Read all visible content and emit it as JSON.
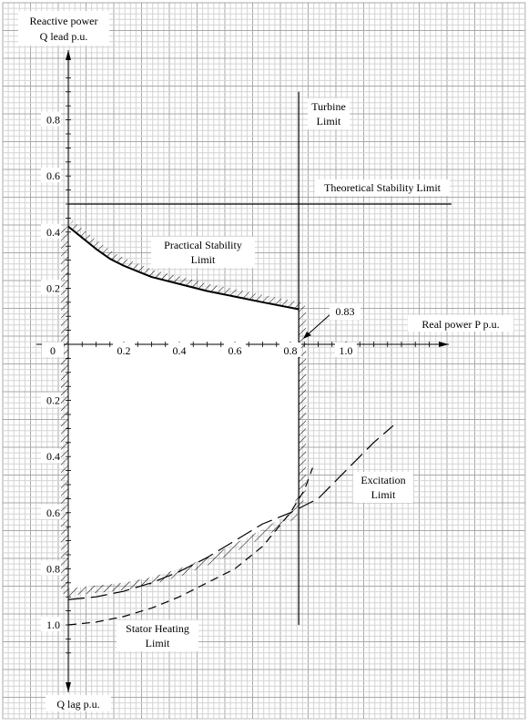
{
  "chart_data": {
    "type": "line",
    "title": "",
    "axes": {
      "x": {
        "label": "Real power P p.u.",
        "ticks": [
          "0",
          "0.2",
          "0.4",
          "0.6",
          "0.8",
          "1.0"
        ],
        "range": [
          -0.1,
          1.35
        ]
      },
      "y": {
        "label_top_line1": "Reactive power",
        "label_top_line2": "Q lead p.u.",
        "label_bottom": "Q lag p.u.",
        "ticks_lead": [
          "0.2",
          "0.4",
          "0.6",
          "0.8"
        ],
        "ticks_lag": [
          "0.2",
          "0.4",
          "0.6",
          "0.8",
          "1.0"
        ],
        "range": [
          -1.16,
          1.1
        ]
      },
      "grid": true
    },
    "annotations": {
      "turbine_limit_line1": "Turbine",
      "turbine_limit_line2": "Limit",
      "theoretical_stability": "Theoretical Stability Limit",
      "practical_stability_line1": "Practical Stability",
      "practical_stability_line2": "Limit",
      "turbine_value": "0.83",
      "excitation_line1": "Excitation",
      "excitation_line2": "Limit",
      "stator_heating_line1": "Stator Heating",
      "stator_heating_line2": "Limit"
    },
    "series": [
      {
        "name": "Turbine Limit",
        "style": "solid",
        "points": [
          [
            0.83,
            0.9
          ],
          [
            0.83,
            -1.0
          ]
        ]
      },
      {
        "name": "Theoretical Stability Limit",
        "style": "solid",
        "points": [
          [
            0.0,
            0.5
          ],
          [
            1.38,
            0.5
          ]
        ]
      },
      {
        "name": "Practical Stability Limit",
        "style": "solid",
        "points": [
          [
            0.0,
            0.42
          ],
          [
            0.05,
            0.38
          ],
          [
            0.1,
            0.34
          ],
          [
            0.15,
            0.305
          ],
          [
            0.2,
            0.28
          ],
          [
            0.25,
            0.26
          ],
          [
            0.3,
            0.24
          ],
          [
            0.4,
            0.215
          ],
          [
            0.5,
            0.19
          ],
          [
            0.6,
            0.17
          ],
          [
            0.7,
            0.15
          ],
          [
            0.83,
            0.125
          ]
        ]
      },
      {
        "name": "Excitation Limit",
        "style": "long-dash",
        "points": [
          [
            0.0,
            -0.91
          ],
          [
            0.1,
            -0.9
          ],
          [
            0.2,
            -0.88
          ],
          [
            0.3,
            -0.85
          ],
          [
            0.4,
            -0.81
          ],
          [
            0.5,
            -0.76
          ],
          [
            0.6,
            -0.7
          ],
          [
            0.7,
            -0.64
          ],
          [
            0.8,
            -0.6
          ],
          [
            0.9,
            -0.55
          ],
          [
            1.0,
            -0.45
          ],
          [
            1.1,
            -0.35
          ],
          [
            1.17,
            -0.29
          ]
        ]
      },
      {
        "name": "Stator Heating Limit",
        "style": "dash",
        "points": [
          [
            0.0,
            -1.0
          ],
          [
            0.1,
            -0.99
          ],
          [
            0.2,
            -0.97
          ],
          [
            0.3,
            -0.94
          ],
          [
            0.4,
            -0.9
          ],
          [
            0.5,
            -0.85
          ],
          [
            0.6,
            -0.8
          ],
          [
            0.7,
            -0.72
          ],
          [
            0.8,
            -0.6
          ],
          [
            0.85,
            -0.52
          ],
          [
            0.88,
            -0.44
          ]
        ]
      }
    ],
    "operating_region_boundary": [
      [
        0.0,
        0.42
      ],
      [
        0.05,
        0.38
      ],
      [
        0.1,
        0.34
      ],
      [
        0.15,
        0.305
      ],
      [
        0.2,
        0.28
      ],
      [
        0.3,
        0.24
      ],
      [
        0.4,
        0.215
      ],
      [
        0.5,
        0.19
      ],
      [
        0.6,
        0.17
      ],
      [
        0.7,
        0.15
      ],
      [
        0.83,
        0.125
      ],
      [
        0.83,
        -0.53
      ],
      [
        0.8,
        -0.6
      ],
      [
        0.7,
        -0.66
      ],
      [
        0.6,
        -0.71
      ],
      [
        0.5,
        -0.76
      ],
      [
        0.4,
        -0.8
      ],
      [
        0.3,
        -0.83
      ],
      [
        0.2,
        -0.85
      ],
      [
        0.1,
        -0.86
      ],
      [
        0.0,
        -0.87
      ],
      [
        0.0,
        0.42
      ]
    ]
  }
}
